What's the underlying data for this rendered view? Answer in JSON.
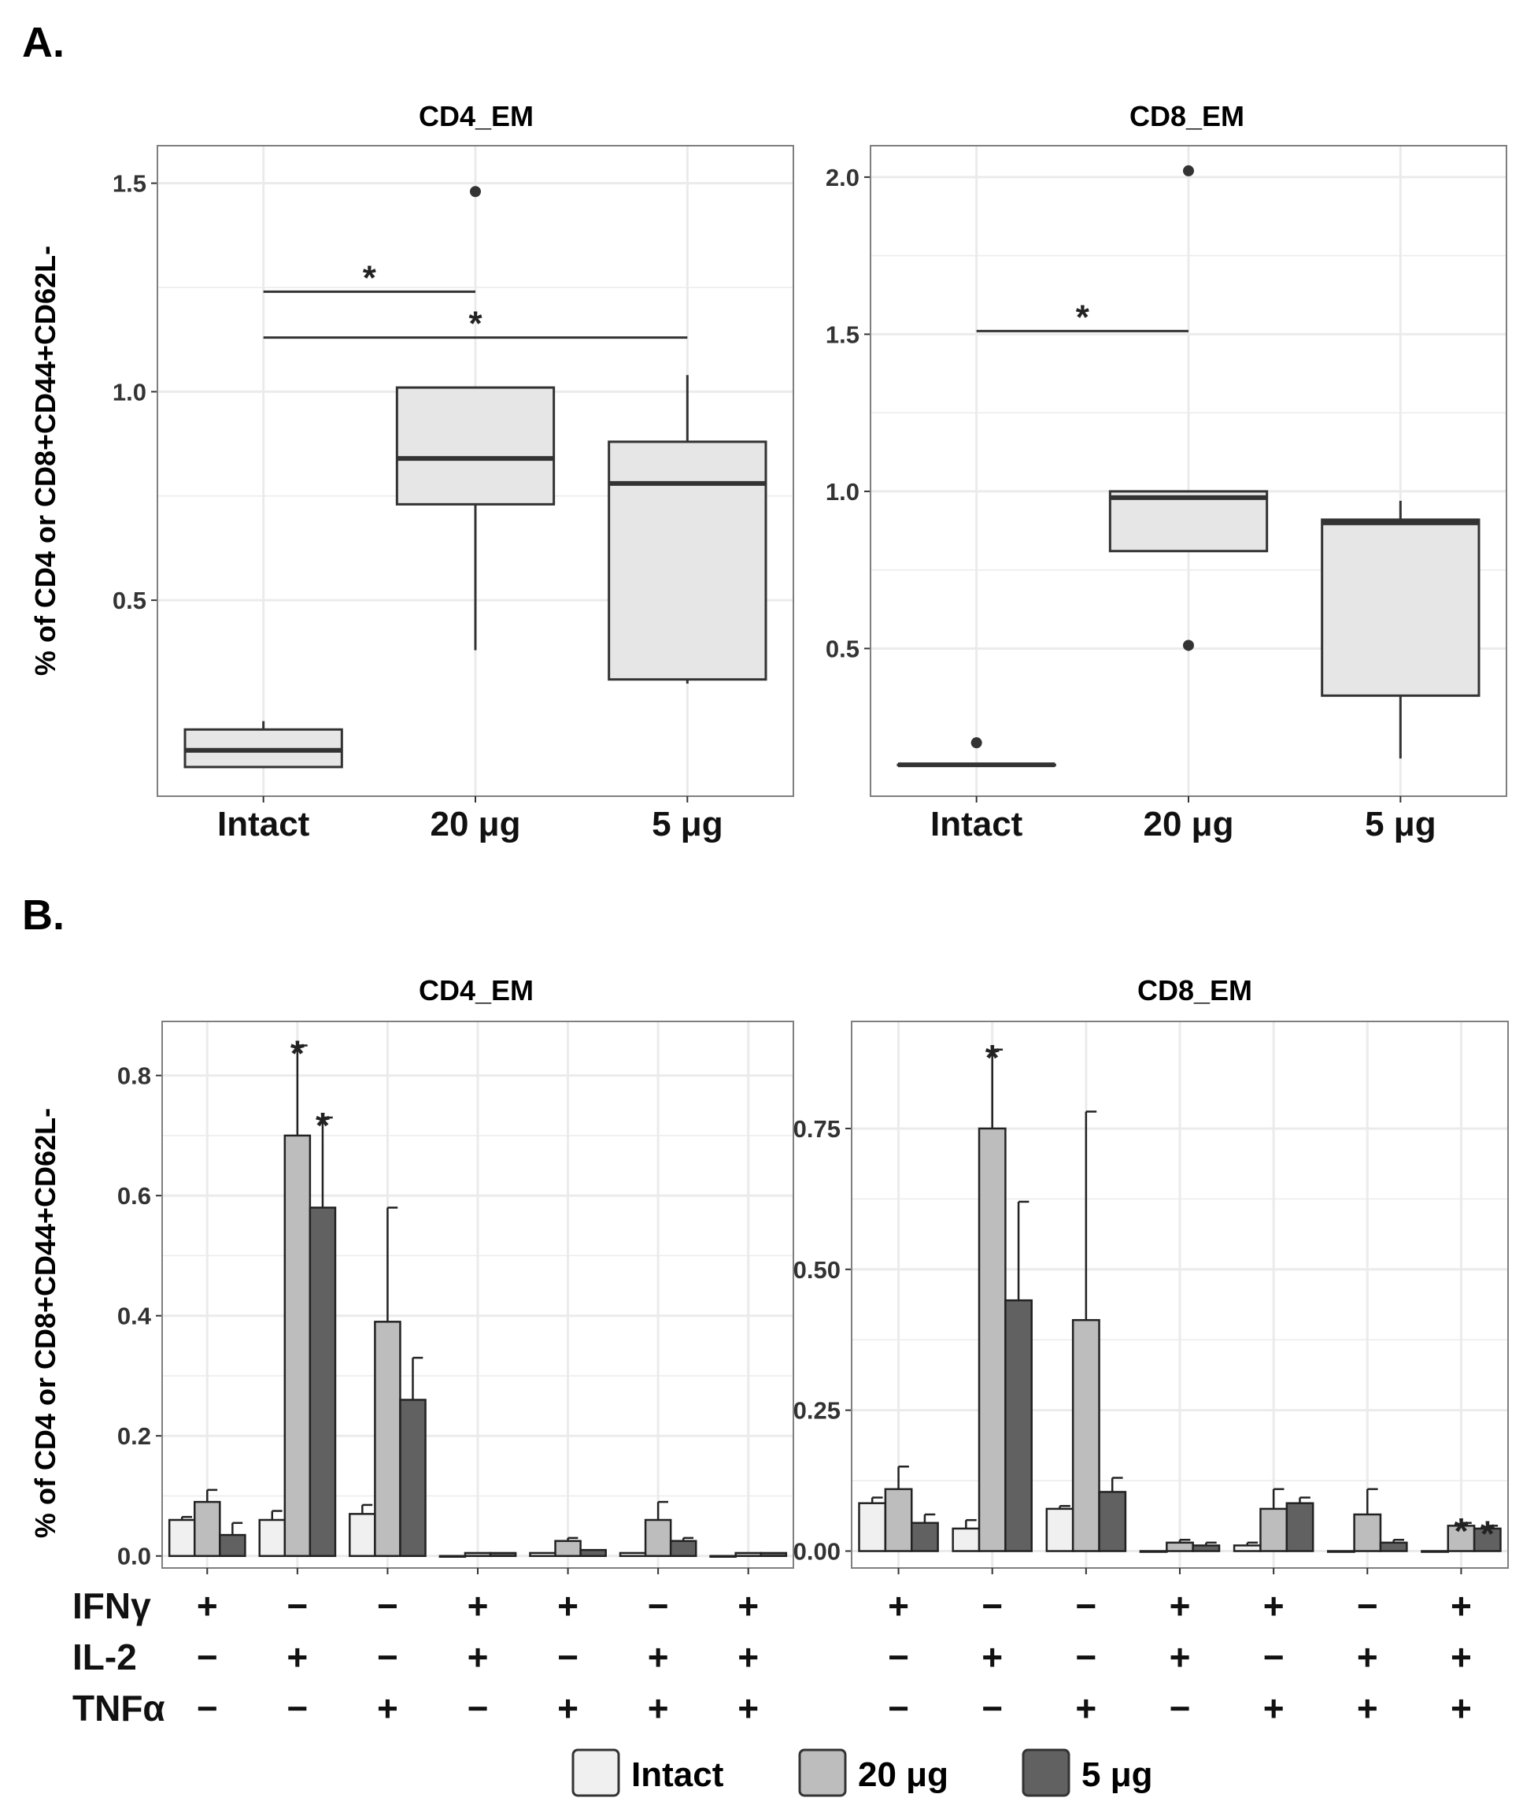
{
  "groups": [
    "Intact",
    "20 μg",
    "5 μg"
  ],
  "colors": {
    "intact": "#f0f0f0",
    "ug20": "#bdbdbd",
    "ug5": "#616161",
    "box": "#e6e6e6",
    "stroke": "#333333",
    "grid": "#ebebeb",
    "panelBorder": "#7f7f7f"
  },
  "panelA": {
    "label": "A.",
    "ylabel": "% of CD4 or CD8+CD44+CD62L-",
    "chart_data": [
      {
        "type": "box",
        "title": "CD4_EM",
        "ylim": [
          0.03,
          1.59
        ],
        "yticks": [
          0.5,
          1.0,
          1.5
        ],
        "ytick_labels": [
          "0.5",
          "1.0",
          "1.5"
        ],
        "categories": [
          "Intact",
          "20 μg",
          "5 μg"
        ],
        "boxes": [
          {
            "q1": 0.1,
            "median": 0.14,
            "q3": 0.19,
            "whisker_low": 0.1,
            "whisker_high": 0.21,
            "outliers": []
          },
          {
            "q1": 0.73,
            "median": 0.84,
            "q3": 1.01,
            "whisker_low": 0.38,
            "whisker_high": 1.01,
            "outliers": [
              1.48
            ]
          },
          {
            "q1": 0.31,
            "median": 0.78,
            "q3": 0.88,
            "whisker_low": 0.3,
            "whisker_high": 1.04,
            "outliers": []
          }
        ],
        "significance": [
          {
            "from": 0,
            "to": 1,
            "y": 1.24,
            "label": "*"
          },
          {
            "from": 0,
            "to": 2,
            "y": 1.13,
            "label": "*"
          }
        ]
      },
      {
        "type": "box",
        "title": "CD8_EM",
        "ylim": [
          0.03,
          2.1
        ],
        "yticks": [
          0.5,
          1.0,
          1.5,
          2.0
        ],
        "ytick_labels": [
          "0.5",
          "1.0",
          "1.5",
          "2.0"
        ],
        "categories": [
          "Intact",
          "20 μg",
          "5 μg"
        ],
        "boxes": [
          {
            "q1": 0.13,
            "median": 0.13,
            "q3": 0.13,
            "whisker_low": 0.13,
            "whisker_high": 0.13,
            "outliers": [
              0.2
            ]
          },
          {
            "q1": 0.81,
            "median": 0.98,
            "q3": 1.0,
            "whisker_low": 0.81,
            "whisker_high": 1.0,
            "outliers": [
              2.02,
              0.51
            ]
          },
          {
            "q1": 0.35,
            "median": 0.9,
            "q3": 0.91,
            "whisker_low": 0.15,
            "whisker_high": 0.97,
            "outliers": []
          }
        ],
        "significance": [
          {
            "from": 0,
            "to": 1,
            "y": 1.51,
            "label": "*"
          }
        ]
      }
    ]
  },
  "panelB": {
    "label": "B.",
    "ylabel": "% of CD4 or CD8+CD44+CD62L-",
    "cytokines": [
      "IFNγ",
      "IL-2",
      "TNFα"
    ],
    "combos": [
      [
        "+",
        "−",
        "−"
      ],
      [
        "−",
        "+",
        "−"
      ],
      [
        "−",
        "−",
        "+"
      ],
      [
        "+",
        "+",
        "−"
      ],
      [
        "+",
        "−",
        "+"
      ],
      [
        "−",
        "+",
        "+"
      ],
      [
        "+",
        "+",
        "+"
      ]
    ],
    "chart_data": [
      {
        "type": "bar",
        "title": "CD4_EM",
        "ylim": [
          -0.02,
          0.89
        ],
        "yticks": [
          0.0,
          0.2,
          0.4,
          0.6,
          0.8
        ],
        "ytick_labels": [
          "0.0",
          "0.2",
          "0.4",
          "0.6",
          "0.8"
        ],
        "series": [
          {
            "name": "Intact",
            "values": [
              0.06,
              0.06,
              0.07,
              0.0,
              0.005,
              0.005,
              0.0
            ],
            "errors": [
              0.005,
              0.015,
              0.015,
              0.0,
              0.0,
              0.0,
              0.0
            ]
          },
          {
            "name": "20 μg",
            "values": [
              0.09,
              0.7,
              0.39,
              0.005,
              0.025,
              0.06,
              0.005
            ],
            "errors": [
              0.02,
              0.15,
              0.19,
              0.0,
              0.005,
              0.03,
              0.0
            ]
          },
          {
            "name": "5 μg",
            "values": [
              0.035,
              0.58,
              0.26,
              0.005,
              0.01,
              0.025,
              0.005
            ],
            "errors": [
              0.02,
              0.15,
              0.07,
              0.0,
              0.0,
              0.005,
              0.0
            ]
          }
        ],
        "stars": [
          {
            "group": 1,
            "series": 1
          },
          {
            "group": 1,
            "series": 2
          }
        ]
      },
      {
        "type": "bar",
        "title": "CD8_EM",
        "ylim": [
          -0.03,
          0.94
        ],
        "yticks": [
          0.0,
          0.25,
          0.5,
          0.75
        ],
        "ytick_labels": [
          "0.00",
          "0.25",
          "0.50",
          "0.75"
        ],
        "series": [
          {
            "name": "Intact",
            "values": [
              0.085,
              0.04,
              0.075,
              0.0,
              0.01,
              0.0,
              0.0
            ],
            "errors": [
              0.01,
              0.015,
              0.005,
              0.0,
              0.005,
              0.0,
              0.0
            ]
          },
          {
            "name": "20 μg",
            "values": [
              0.11,
              0.75,
              0.41,
              0.015,
              0.075,
              0.065,
              0.045
            ],
            "errors": [
              0.04,
              0.14,
              0.37,
              0.005,
              0.035,
              0.045,
              0.005
            ]
          },
          {
            "name": "5 μg",
            "values": [
              0.05,
              0.445,
              0.105,
              0.01,
              0.085,
              0.015,
              0.04
            ],
            "errors": [
              0.015,
              0.175,
              0.025,
              0.005,
              0.01,
              0.005,
              0.005
            ]
          }
        ],
        "stars": [
          {
            "group": 1,
            "series": 1
          },
          {
            "group": 6,
            "series": 1
          },
          {
            "group": 6,
            "series": 2
          }
        ]
      }
    ],
    "legend": [
      "Intact",
      "20 μg",
      "5 μg"
    ]
  }
}
